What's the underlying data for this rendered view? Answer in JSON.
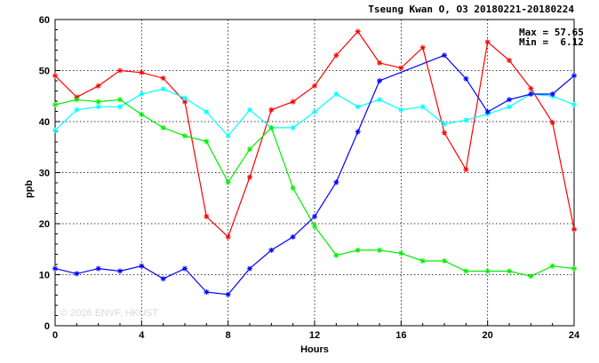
{
  "chart_data": {
    "type": "line",
    "title": "Tseung Kwan O, O3 20180221-20180224",
    "xlabel": "Hours",
    "ylabel": "ppb",
    "xlim": [
      0,
      24
    ],
    "ylim": [
      0,
      60
    ],
    "x_ticks": [
      "0",
      "4",
      "8",
      "12",
      "16",
      "20",
      "24"
    ],
    "y_ticks": [
      "0",
      "10",
      "20",
      "30",
      "40",
      "50",
      "60"
    ],
    "grid": true,
    "legend": "none",
    "annotations": {
      "max_text": "Max = 57.65",
      "min_text": "Min =  6.12"
    },
    "watermark": "© 2026  ENVF, HKUST",
    "x": [
      0,
      1,
      2,
      3,
      4,
      5,
      6,
      7,
      8,
      9,
      10,
      11,
      12,
      13,
      14,
      15,
      16,
      17,
      18,
      19,
      20,
      21,
      22,
      23,
      24
    ],
    "series": [
      {
        "color": "#ff0000",
        "values": [
          49.0,
          44.8,
          47.0,
          50.0,
          49.6,
          48.5,
          43.9,
          21.4,
          17.4,
          29.1,
          42.3,
          43.9,
          47.0,
          53.0,
          57.65,
          51.5,
          50.5,
          54.5,
          37.8,
          30.6,
          55.6,
          52.0,
          46.5,
          39.8,
          18.9
        ]
      },
      {
        "color": "#00ffff",
        "values": [
          38.3,
          42.3,
          42.9,
          42.9,
          45.4,
          46.4,
          44.6,
          41.9,
          37.2,
          42.3,
          38.8,
          38.8,
          41.9,
          45.4,
          42.9,
          44.3,
          42.3,
          42.9,
          39.5,
          40.3,
          41.5,
          42.9,
          45.4,
          45.0,
          43.3
        ]
      },
      {
        "color": "#00ee00",
        "values": [
          43.3,
          44.3,
          43.9,
          44.3,
          41.4,
          38.8,
          37.2,
          36.1,
          28.1,
          34.6,
          38.8,
          27.0,
          19.5,
          13.8,
          14.8,
          14.8,
          14.2,
          12.7,
          12.7,
          10.7,
          10.7,
          10.7,
          9.7,
          11.7,
          11.2
        ]
      },
      {
        "color": "#0000ff",
        "values": [
          11.2,
          10.2,
          11.2,
          10.7,
          11.7,
          9.2,
          11.2,
          6.6,
          6.12,
          11.2,
          14.8,
          17.4,
          21.4,
          28.1,
          38.0,
          48.0,
          null,
          null,
          53.0,
          48.4,
          41.9,
          44.3,
          45.4,
          45.4,
          49.0
        ]
      }
    ]
  }
}
